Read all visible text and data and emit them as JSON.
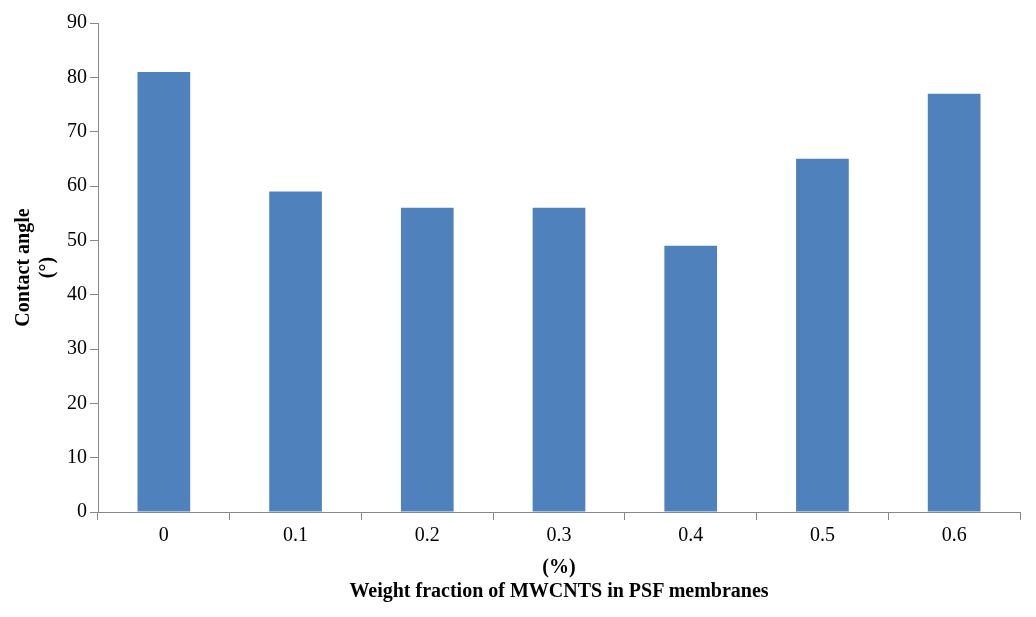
{
  "chart_data": {
    "type": "bar",
    "xlabel": "(%)\nWeight fraction of MWCNTS in PSF membranes",
    "ylabel": "Contact angle\n(°)",
    "categories": [
      "0",
      "0.1",
      "0.2",
      "0.3",
      "0.4",
      "0.5",
      "0.6"
    ],
    "values": [
      81,
      59,
      56,
      56,
      49,
      65,
      77
    ],
    "color": "#4f81bd",
    "ylim": [
      0,
      90
    ],
    "yticks": [
      0,
      10,
      20,
      30,
      40,
      50,
      60,
      70,
      80,
      90
    ]
  }
}
